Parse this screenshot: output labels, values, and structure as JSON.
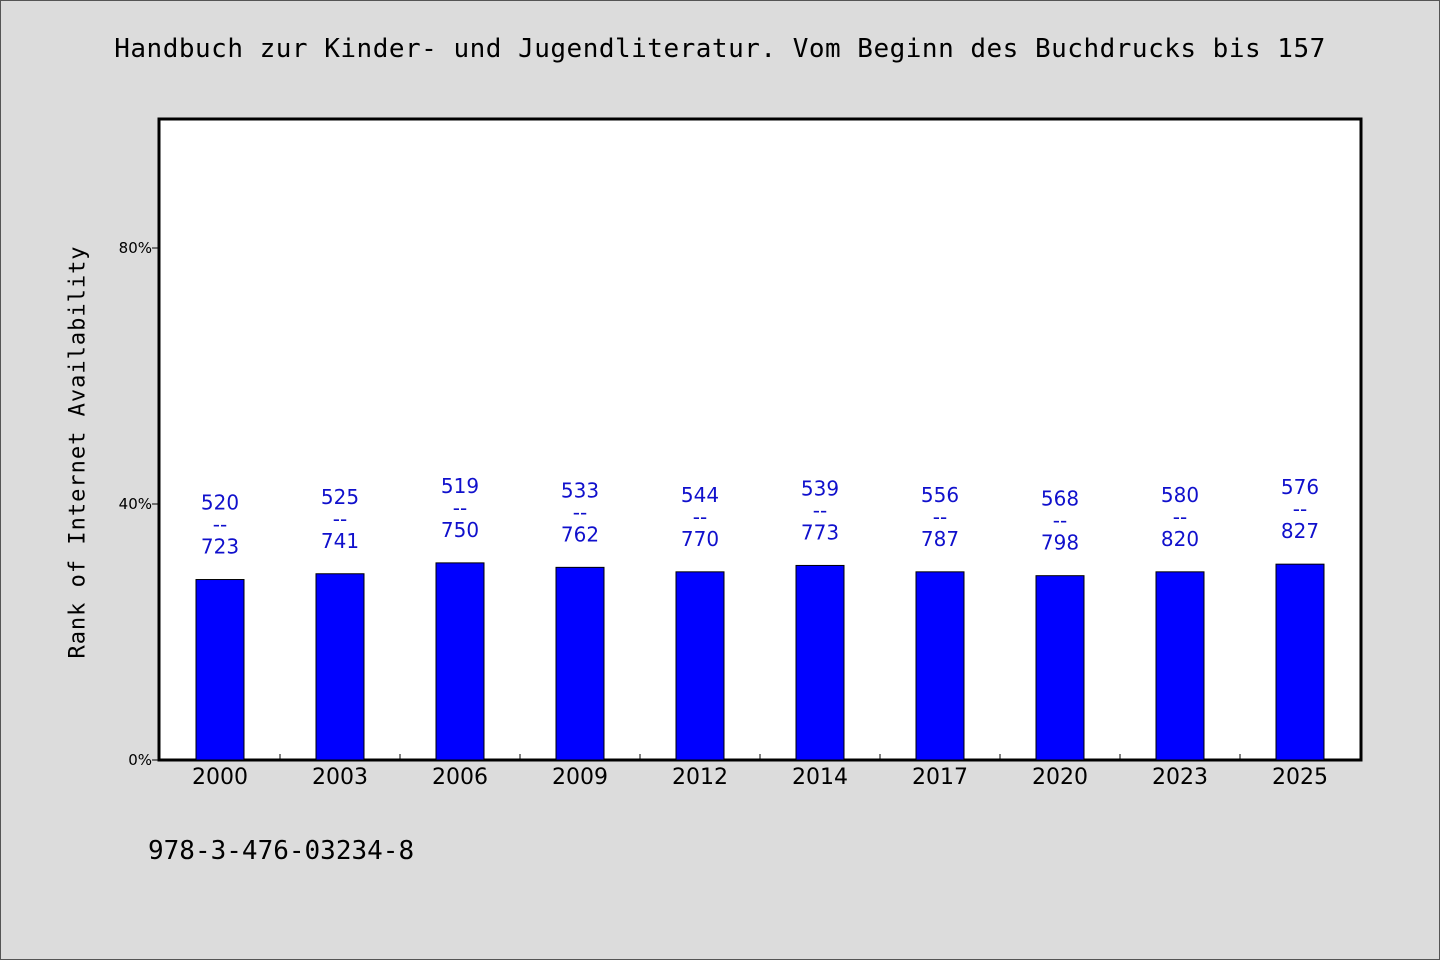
{
  "chart_data": {
    "type": "bar",
    "title": "Handbuch zur Kinder- und Jugendliteratur. Vom Beginn des Buchdrucks bis 157",
    "xlabel": "",
    "ylabel": "Rank of Internet Availability",
    "footer": "978-3-476-03234-8",
    "y_ticks": [
      "0%",
      "40%",
      "80%"
    ],
    "y_tick_values": [
      0,
      40,
      80
    ],
    "ylim": [
      0,
      100
    ],
    "grid": false,
    "bar_color": "#0000ff",
    "label_color": "#1010cc",
    "categories": [
      "2000",
      "2003",
      "2006",
      "2009",
      "2012",
      "2014",
      "2017",
      "2020",
      "2023",
      "2025"
    ],
    "values": [
      28.2,
      29.1,
      30.8,
      30.1,
      29.4,
      30.4,
      29.4,
      28.8,
      29.4,
      30.6
    ],
    "bar_labels": [
      [
        "520",
        "--",
        "723"
      ],
      [
        "525",
        "--",
        "741"
      ],
      [
        "519",
        "--",
        "750"
      ],
      [
        "533",
        "--",
        "762"
      ],
      [
        "544",
        "--",
        "770"
      ],
      [
        "539",
        "--",
        "773"
      ],
      [
        "556",
        "--",
        "787"
      ],
      [
        "568",
        "--",
        "798"
      ],
      [
        "580",
        "--",
        "820"
      ],
      [
        "576",
        "--",
        "827"
      ]
    ]
  }
}
